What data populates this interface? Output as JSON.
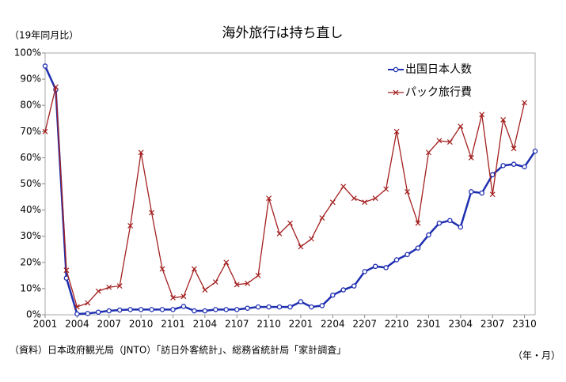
{
  "chart_data": {
    "type": "line",
    "title": "海外旅行は持ち直し",
    "y_label": "（19年同月比）",
    "x_label": "（年・月）",
    "source": "（資料）日本政府観光局（JNTO）「訪日外客統計」、総務省統計局「家計調査」",
    "categories": [
      "2001",
      null,
      null,
      "2004",
      null,
      null,
      "2007",
      null,
      null,
      "2010",
      null,
      null,
      "2101",
      null,
      null,
      "2104",
      null,
      null,
      "2107",
      null,
      null,
      "2110",
      null,
      null,
      "2201",
      null,
      null,
      "2204",
      null,
      null,
      "2207",
      null,
      null,
      "2210",
      null,
      null,
      "2301",
      null,
      null,
      "2304",
      null,
      null,
      "2307",
      null,
      null,
      "2310",
      null
    ],
    "series": [
      {
        "name": "出国日本人数",
        "color": "#1f2fb0",
        "values": [
          95,
          86,
          14,
          0.3,
          0.5,
          1,
          1.5,
          1.8,
          2,
          2,
          2,
          2,
          2,
          3.2,
          1.5,
          1.5,
          2,
          2,
          2,
          2.5,
          3,
          3,
          3,
          3,
          5,
          3,
          3.5,
          7.5,
          9.5,
          11,
          16.5,
          18.5,
          18,
          21,
          23,
          25.5,
          30.5,
          35,
          36,
          33.5,
          47,
          46.5,
          53.5,
          57,
          57.5,
          56.5,
          62.5
        ]
      },
      {
        "name": "パック旅行費",
        "color": "#a31f1f",
        "values": [
          70,
          87,
          17,
          3,
          4.5,
          9,
          10.5,
          11,
          34,
          62,
          39,
          17.5,
          6.5,
          7,
          17.5,
          9.5,
          12.5,
          20,
          11.5,
          12,
          15,
          44.5,
          31,
          35,
          26,
          29,
          37,
          43,
          49,
          44.5,
          43,
          44.5,
          48,
          70,
          47,
          35,
          62,
          66.5,
          66,
          72,
          60,
          76.5,
          46,
          74.5,
          63.5,
          81,
          null
        ]
      }
    ],
    "ylim": [
      0,
      100
    ],
    "yticks": [
      {
        "value": 0,
        "label": "0%"
      },
      {
        "value": 10,
        "label": "10%"
      },
      {
        "value": 20,
        "label": "20%"
      },
      {
        "value": 30,
        "label": "30%"
      },
      {
        "value": 40,
        "label": "40%"
      },
      {
        "value": 50,
        "label": "50%"
      },
      {
        "value": 60,
        "label": "60%"
      },
      {
        "value": 70,
        "label": "70%"
      },
      {
        "value": 80,
        "label": "80%"
      },
      {
        "value": 90,
        "label": "90%"
      },
      {
        "value": 100,
        "label": "100%"
      }
    ],
    "grid": false,
    "legend": "upper right"
  }
}
